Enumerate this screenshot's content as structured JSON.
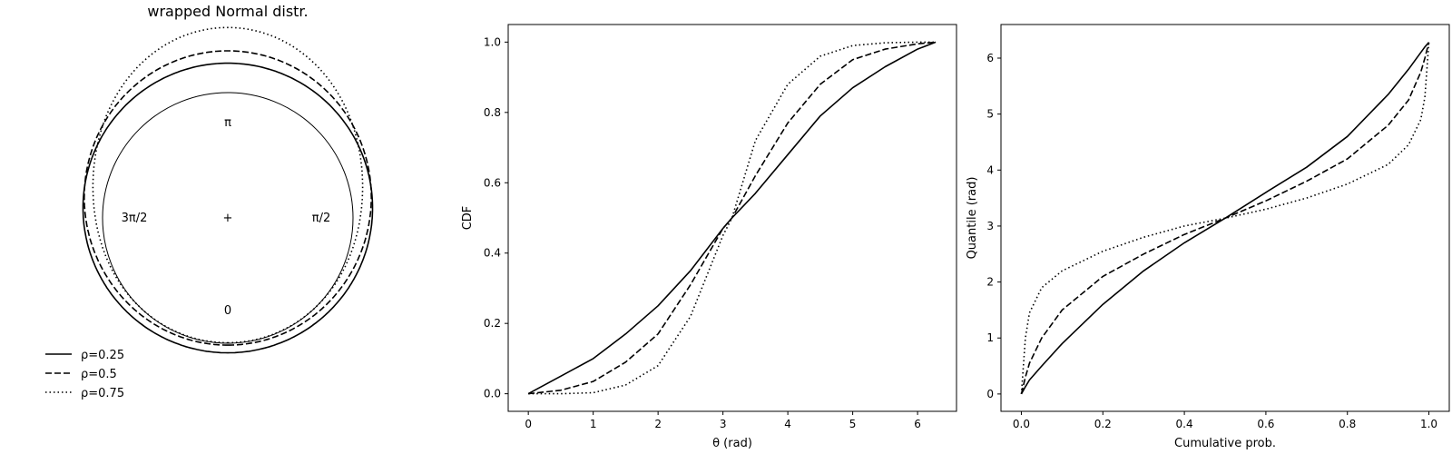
{
  "chart_data": [
    {
      "type": "line",
      "subtype": "circular-density",
      "title": "wrapped Normal distr.",
      "direction_labels": [
        "π",
        "π/2",
        "0",
        "3π/2"
      ],
      "center_marker": "+",
      "base_circle_radius": 1.0,
      "series": [
        {
          "name": "ρ=0.25",
          "style": "solid",
          "rho": 0.25
        },
        {
          "name": "ρ=0.5",
          "style": "dashed",
          "rho": 0.5
        },
        {
          "name": "ρ=0.75",
          "style": "dotted",
          "rho": 0.75
        }
      ],
      "legend_position": "bottom-left"
    },
    {
      "type": "line",
      "title": "",
      "xlabel": "θ (rad)",
      "ylabel": "CDF",
      "xlim": [
        -0.31,
        6.6
      ],
      "ylim": [
        -0.05,
        1.05
      ],
      "xticks": [
        "0",
        "1",
        "2",
        "3",
        "4",
        "5",
        "6"
      ],
      "yticks": [
        "0.0",
        "0.2",
        "0.4",
        "0.6",
        "0.8",
        "1.0"
      ],
      "x": [
        0,
        0.5,
        1,
        1.5,
        2,
        2.5,
        3,
        3.14,
        3.5,
        4,
        4.5,
        5,
        5.5,
        6,
        6.28
      ],
      "series": [
        {
          "name": "ρ=0.25",
          "style": "solid",
          "values": [
            0.0,
            0.05,
            0.1,
            0.17,
            0.25,
            0.35,
            0.47,
            0.5,
            0.57,
            0.68,
            0.79,
            0.87,
            0.93,
            0.98,
            1.0
          ]
        },
        {
          "name": "ρ=0.5",
          "style": "dashed",
          "values": [
            0.0,
            0.01,
            0.035,
            0.09,
            0.17,
            0.31,
            0.47,
            0.5,
            0.62,
            0.77,
            0.88,
            0.95,
            0.98,
            0.995,
            1.0
          ]
        },
        {
          "name": "ρ=0.75",
          "style": "dotted",
          "values": [
            0.0,
            0.0,
            0.003,
            0.025,
            0.08,
            0.22,
            0.45,
            0.5,
            0.72,
            0.88,
            0.96,
            0.99,
            0.998,
            1.0,
            1.0
          ]
        }
      ],
      "grid": false
    },
    {
      "type": "line",
      "title": "",
      "xlabel": "Cumulative prob.",
      "ylabel": "Quantile (rad)",
      "xlim": [
        -0.05,
        1.05
      ],
      "ylim": [
        -0.31,
        6.6
      ],
      "xticks": [
        "0.0",
        "0.2",
        "0.4",
        "0.6",
        "0.8",
        "1.0"
      ],
      "yticks": [
        "0",
        "1",
        "2",
        "3",
        "4",
        "5",
        "6"
      ],
      "x": [
        0,
        0.01,
        0.02,
        0.05,
        0.1,
        0.2,
        0.3,
        0.4,
        0.5,
        0.6,
        0.7,
        0.8,
        0.9,
        0.95,
        0.98,
        0.99,
        1.0
      ],
      "series": [
        {
          "name": "ρ=0.25",
          "style": "solid",
          "values": [
            0.0,
            0.13,
            0.25,
            0.5,
            0.9,
            1.6,
            2.2,
            2.7,
            3.14,
            3.6,
            4.05,
            4.6,
            5.35,
            5.8,
            6.1,
            6.2,
            6.28
          ]
        },
        {
          "name": "ρ=0.5",
          "style": "dashed",
          "values": [
            0.0,
            0.3,
            0.55,
            1.0,
            1.5,
            2.1,
            2.5,
            2.85,
            3.14,
            3.45,
            3.8,
            4.2,
            4.8,
            5.25,
            5.75,
            6.0,
            6.28
          ]
        },
        {
          "name": "ρ=0.75",
          "style": "dotted",
          "values": [
            0.0,
            1.0,
            1.45,
            1.9,
            2.2,
            2.55,
            2.8,
            3.0,
            3.14,
            3.3,
            3.5,
            3.75,
            4.1,
            4.45,
            4.9,
            5.3,
            6.28
          ]
        }
      ],
      "grid": false
    }
  ]
}
